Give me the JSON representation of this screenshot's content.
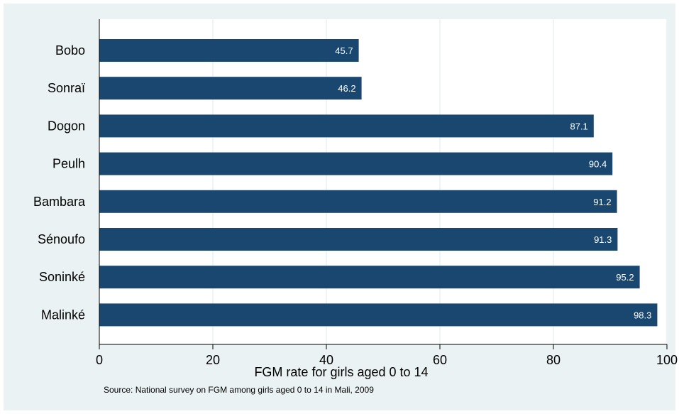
{
  "chart_data": {
    "type": "bar",
    "orientation": "horizontal",
    "categories": [
      "Bobo",
      "Sonraï",
      "Dogon",
      "Peulh",
      "Bambara",
      "Sénoufo",
      "Soninké",
      "Malinké"
    ],
    "values": [
      45.7,
      46.2,
      87.1,
      90.4,
      91.2,
      91.3,
      95.2,
      98.3
    ],
    "value_labels": [
      "45.7",
      "46.2",
      "87.1",
      "90.4",
      "91.2",
      "91.3",
      "95.2",
      "98.3"
    ],
    "xlabel": "FGM rate for girls aged 0 to 14",
    "ylabel": "",
    "xlim": [
      0,
      100
    ],
    "x_ticks": [
      "0",
      "20",
      "40",
      "60",
      "80",
      "100"
    ],
    "note": "Source:  National survey on FGM among girls aged 0 to 14 in Mali, 2009",
    "grid": "vertical",
    "colors": {
      "bar": "#1a476f",
      "background": "#eaf2f3",
      "plot_background": "#ffffff",
      "grid": "#eaf2f3",
      "value_label": "#ffffff"
    }
  }
}
